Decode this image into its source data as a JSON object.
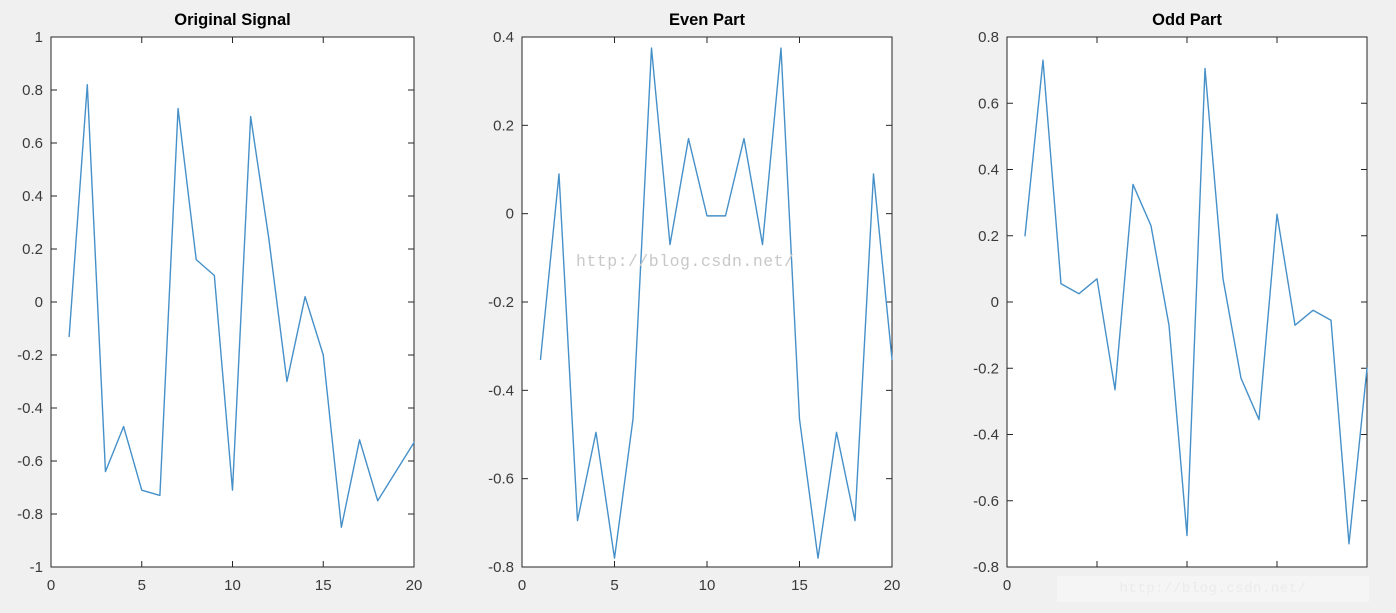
{
  "figure": {
    "background": "#f0f0f0",
    "axes_background": "#ffffff",
    "axis_color": "#262626",
    "tick_label_color": "#3a3a3a",
    "title_color": "#000000",
    "line_color": "#4690c9"
  },
  "watermark": {
    "text": "http://blog.csdn.net/",
    "color": "#c8c8c8"
  },
  "watermark_faint": {
    "text": "http://blog.csdn.net/",
    "color": "#ebebeb"
  },
  "chart_data": [
    {
      "type": "line",
      "title": "Original Signal",
      "xlabel": "",
      "ylabel": "",
      "grid": false,
      "legend": null,
      "xlim": [
        0,
        20
      ],
      "ylim": [
        -1,
        1
      ],
      "x": [
        1,
        2,
        3,
        4,
        5,
        6,
        7,
        8,
        9,
        10,
        11,
        12,
        13,
        14,
        15,
        16,
        17,
        18,
        19,
        20
      ],
      "values": [
        -0.13,
        0.82,
        -0.64,
        -0.47,
        -0.71,
        -0.73,
        0.73,
        0.16,
        0.1,
        -0.71,
        0.7,
        0.24,
        -0.3,
        0.02,
        -0.2,
        -0.85,
        -0.52,
        -0.75,
        -0.64,
        -0.53
      ],
      "xticks": [
        0,
        5,
        10,
        15,
        20
      ],
      "xtick_labels": [
        "0",
        "5",
        "10",
        "15",
        "20"
      ],
      "yticks": [
        1,
        0.8,
        0.6,
        0.4,
        0.2,
        0,
        -0.2,
        -0.4,
        -0.6,
        -0.8,
        -1
      ],
      "ytick_labels": [
        "1",
        "0.8",
        "0.6",
        "0.4",
        "0.2",
        "0",
        "-0.2",
        "-0.4",
        "-0.6",
        "-0.8",
        "-1"
      ]
    },
    {
      "type": "line",
      "title": "Even Part",
      "xlabel": "",
      "ylabel": "",
      "grid": false,
      "legend": null,
      "xlim": [
        0,
        20
      ],
      "ylim": [
        -0.8,
        0.4
      ],
      "x": [
        1,
        2,
        3,
        4,
        5,
        6,
        7,
        8,
        9,
        10,
        11,
        12,
        13,
        14,
        15,
        16,
        17,
        18,
        19,
        20
      ],
      "values": [
        -0.33,
        0.09,
        -0.695,
        -0.495,
        -0.78,
        -0.465,
        0.375,
        -0.07,
        0.17,
        -0.005,
        -0.005,
        0.17,
        -0.07,
        0.375,
        -0.465,
        -0.78,
        -0.495,
        -0.695,
        0.09,
        -0.33
      ],
      "xticks": [
        0,
        5,
        10,
        15,
        20
      ],
      "xtick_labels": [
        "0",
        "5",
        "10",
        "15",
        "20"
      ],
      "yticks": [
        0.4,
        0.2,
        0,
        -0.2,
        -0.4,
        -0.6,
        -0.8
      ],
      "ytick_labels": [
        "0.4",
        "0.2",
        "0",
        "-0.2",
        "-0.4",
        "-0.6",
        "-0.8"
      ]
    },
    {
      "type": "line",
      "title": "Odd Part",
      "xlabel": "",
      "ylabel": "",
      "grid": false,
      "legend": null,
      "xlim": [
        0,
        20
      ],
      "ylim": [
        -0.8,
        0.8
      ],
      "x": [
        1,
        2,
        3,
        4,
        5,
        6,
        7,
        8,
        9,
        10,
        11,
        12,
        13,
        14,
        15,
        16,
        17,
        18,
        19,
        20
      ],
      "values": [
        0.2,
        0.73,
        0.055,
        0.025,
        0.07,
        -0.265,
        0.355,
        0.23,
        -0.07,
        -0.705,
        0.705,
        0.07,
        -0.23,
        -0.355,
        0.265,
        -0.07,
        -0.025,
        -0.055,
        -0.73,
        -0.2
      ],
      "xticks": [
        0,
        5,
        10,
        15,
        20
      ],
      "xtick_labels": [
        "0",
        "",
        "",
        "",
        ""
      ],
      "yticks": [
        0.8,
        0.6,
        0.4,
        0.2,
        0,
        -0.2,
        -0.4,
        -0.6,
        -0.8
      ],
      "ytick_labels": [
        "0.8",
        "0.6",
        "0.4",
        "0.2",
        "0",
        "-0.2",
        "-0.4",
        "-0.6",
        "-0.8"
      ]
    }
  ]
}
